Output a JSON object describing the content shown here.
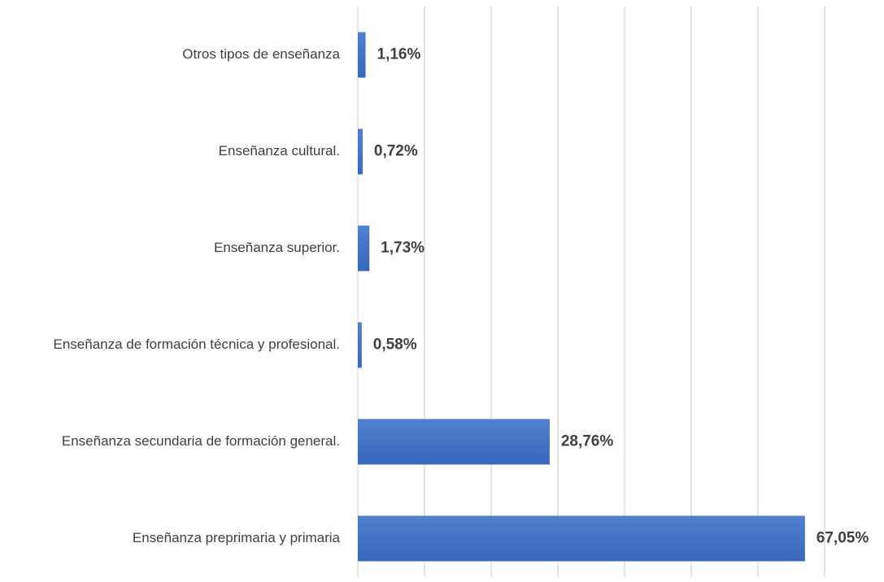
{
  "chart_data": {
    "type": "barh",
    "categories": [
      "Otros tipos de enseñanza",
      "Enseñanza cultural.",
      "Enseñanza superior.",
      "Enseñanza de formación técnica y profesional.",
      "Enseñanza secundaria de formación general.",
      "Enseñanza preprimaria y primaria"
    ],
    "values": [
      1.16,
      0.72,
      1.73,
      0.58,
      28.76,
      67.05
    ],
    "value_labels": [
      "1,16%",
      "0,72%",
      "1,73%",
      "0,58%",
      "28,76%",
      "67,05%"
    ],
    "color": "#4472c4",
    "xlim": [
      0,
      70
    ],
    "xticks": [
      0,
      10,
      20,
      30,
      40,
      50,
      60,
      70
    ],
    "grid": true
  }
}
